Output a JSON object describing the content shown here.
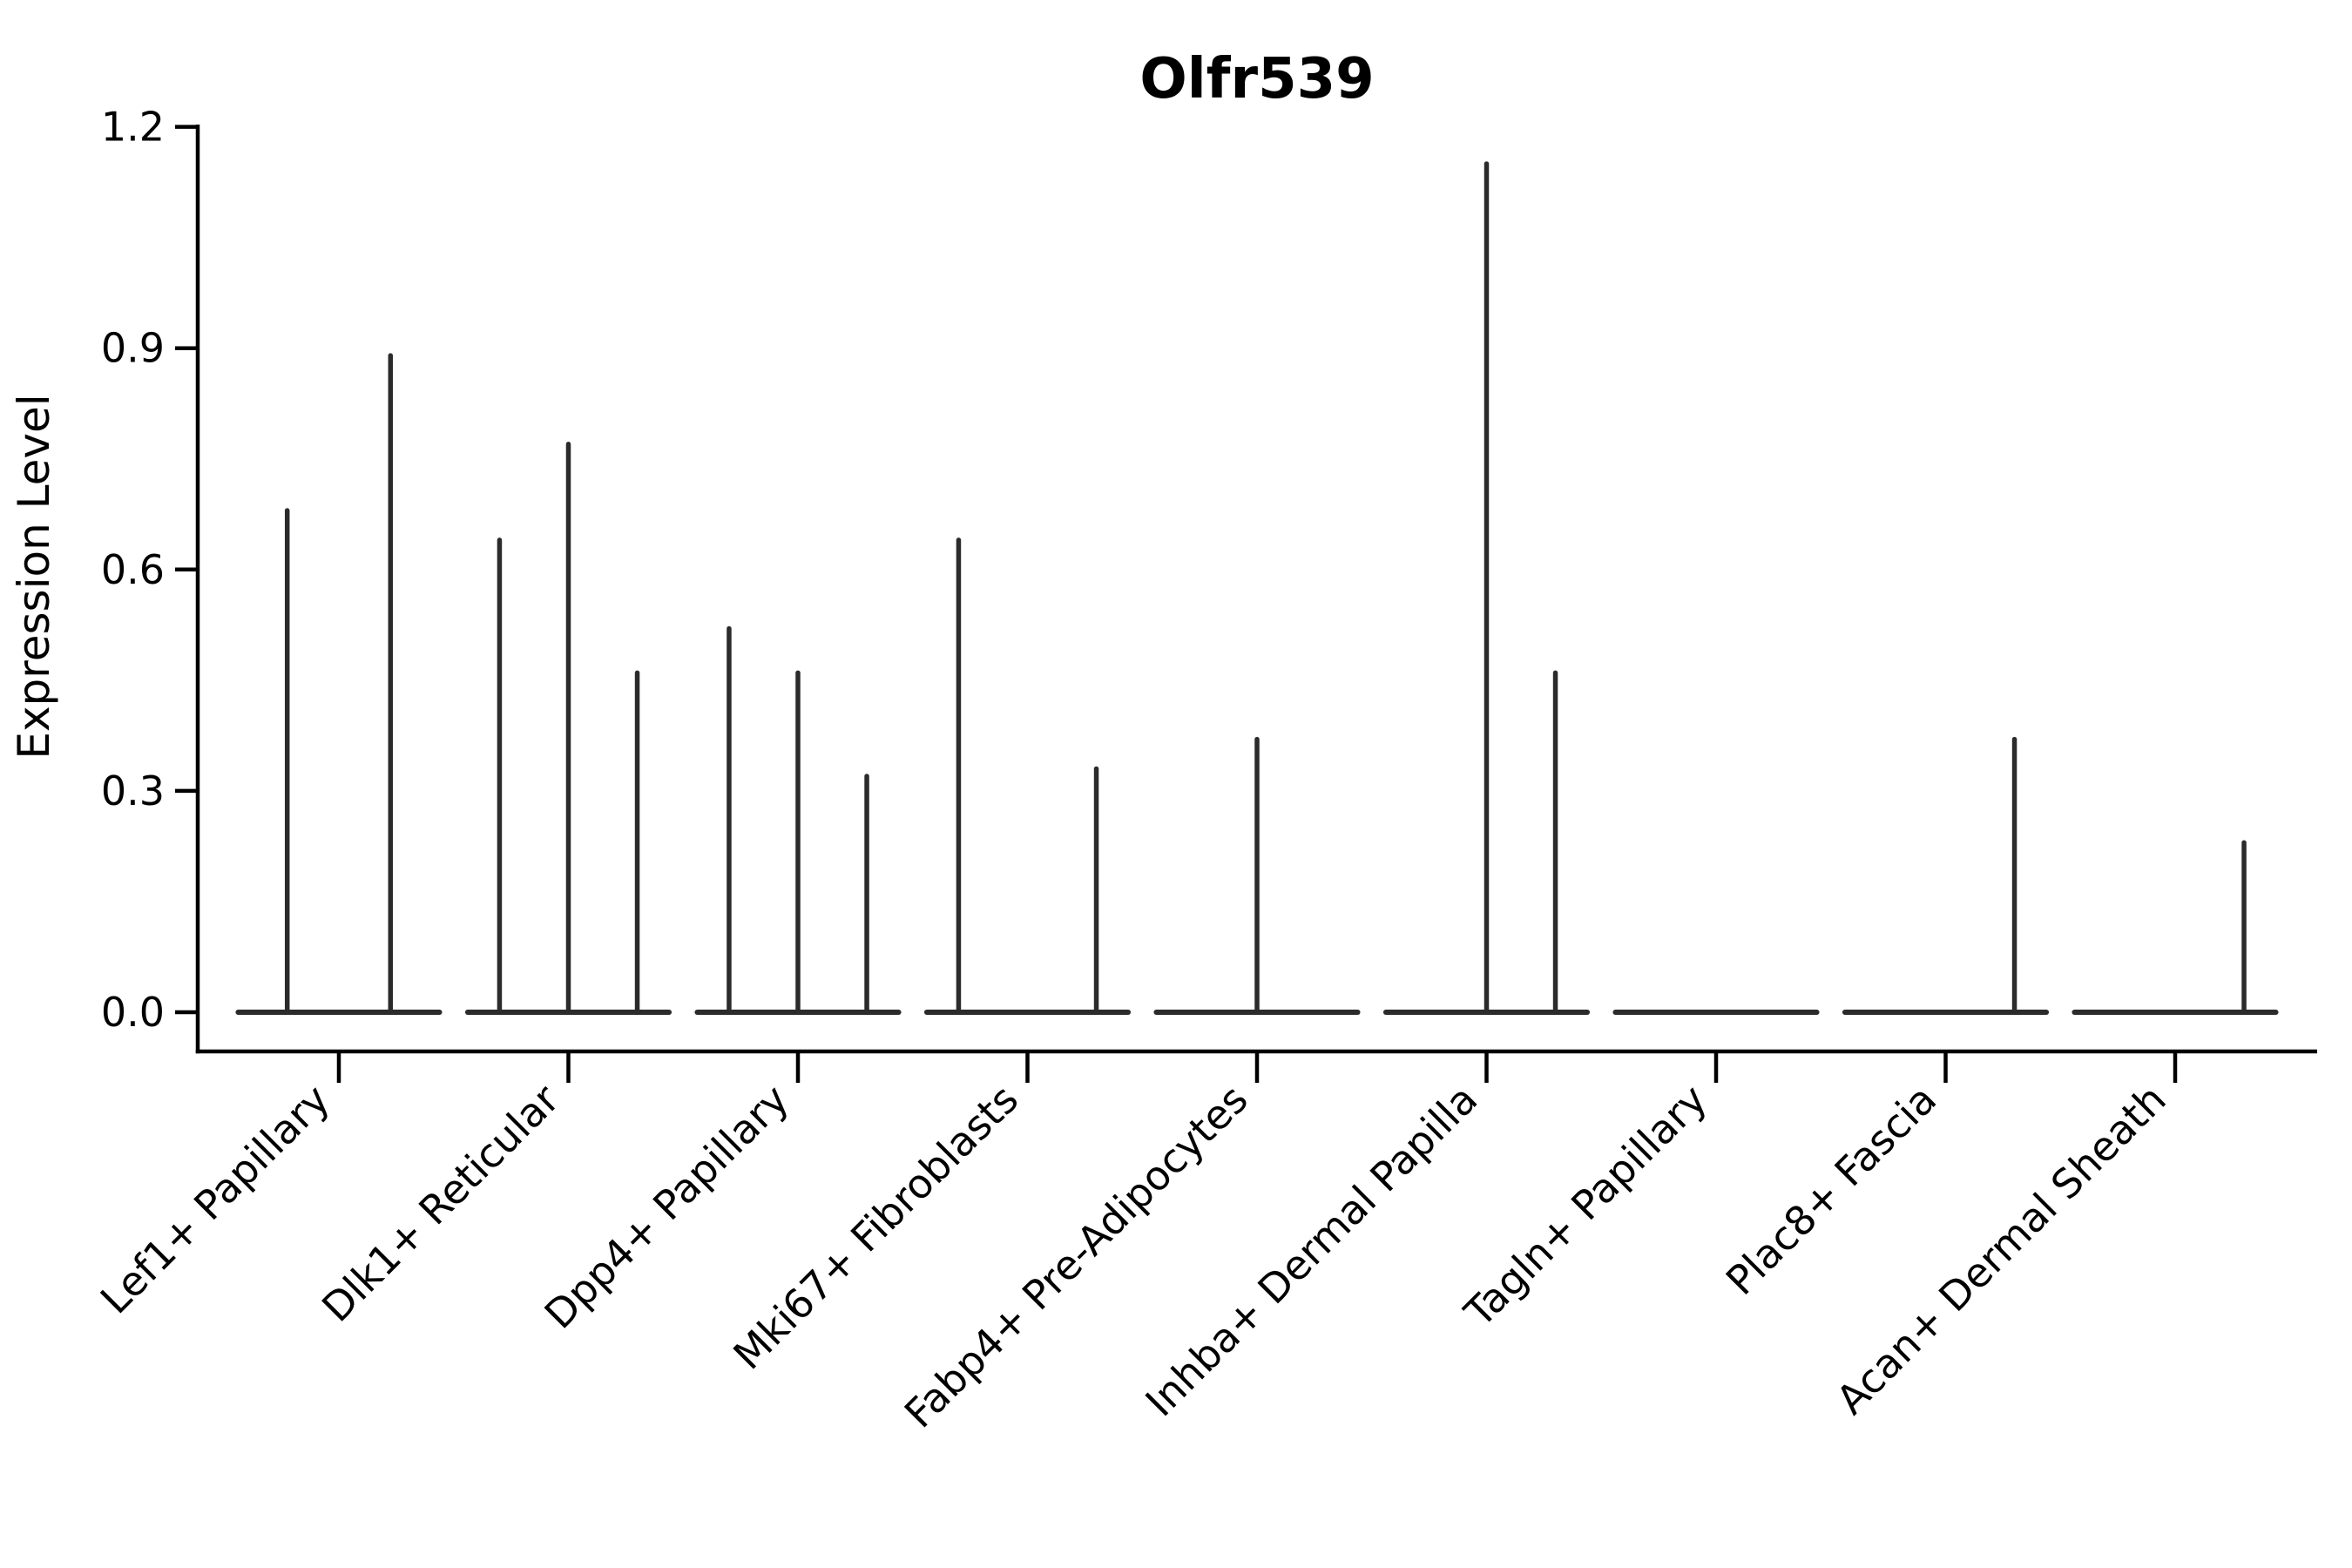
{
  "figure": {
    "background_color": "#ffffff"
  },
  "chart_data": {
    "type": "violin",
    "title": "Olfr539",
    "xlabel": "",
    "ylabel": "Expression Level",
    "ylim": [
      0,
      1.2
    ],
    "ytick_values": [
      0,
      0.3,
      0.6,
      0.9,
      1.2
    ],
    "ytick_labels": [
      "0.0",
      "0.3",
      "0.6",
      "0.9",
      "1.2"
    ],
    "grid": false,
    "legend_position": "none",
    "categories": [
      "Lef1+ Papillary",
      "Dlk1+ Reticular",
      "Dpp4+ Papillary",
      "Mki67+ Fibroblasts",
      "Fabp4+ Pre-Adipocytes",
      "Inhba+ Dermal Papilla",
      "Tagln+ Papillary",
      "Plac8+ Fascia",
      "Acan+ Dermal Sheath"
    ],
    "violins": [
      {
        "category": "Lef1+ Papillary",
        "baseline_value": 0,
        "half_width": 0.45,
        "spikes": [
          {
            "offset": -0.225,
            "peak": 0.68
          },
          {
            "offset": 0.225,
            "peak": 0.89
          }
        ]
      },
      {
        "category": "Dlk1+ Reticular",
        "baseline_value": 0,
        "half_width": 0.45,
        "spikes": [
          {
            "offset": -0.3,
            "peak": 0.64
          },
          {
            "offset": 0,
            "peak": 0.77
          },
          {
            "offset": 0.3,
            "peak": 0.46
          }
        ]
      },
      {
        "category": "Dpp4+ Papillary",
        "baseline_value": 0,
        "half_width": 0.45,
        "spikes": [
          {
            "offset": -0.3,
            "peak": 0.52
          },
          {
            "offset": 0,
            "peak": 0.46
          },
          {
            "offset": 0.3,
            "peak": 0.32
          }
        ]
      },
      {
        "category": "Mki67+ Fibroblasts",
        "baseline_value": 0,
        "half_width": 0.45,
        "spikes": [
          {
            "offset": -0.3,
            "peak": 0.64
          },
          {
            "offset": 0.3,
            "peak": 0.33
          }
        ]
      },
      {
        "category": "Fabp4+ Pre-Adipocytes",
        "baseline_value": 0,
        "half_width": 0.45,
        "spikes": [
          {
            "offset": 0,
            "peak": 0.37
          }
        ]
      },
      {
        "category": "Inhba+ Dermal Papilla",
        "baseline_value": 0,
        "half_width": 0.45,
        "spikes": [
          {
            "offset": 0,
            "peak": 1.15
          },
          {
            "offset": 0.3,
            "peak": 0.46
          }
        ]
      },
      {
        "category": "Tagln+ Papillary",
        "baseline_value": 0,
        "half_width": 0.45,
        "spikes": []
      },
      {
        "category": "Plac8+ Fascia",
        "baseline_value": 0,
        "half_width": 0.45,
        "spikes": [
          {
            "offset": 0.3,
            "peak": 0.37
          }
        ]
      },
      {
        "category": "Acan+ Dermal Sheath",
        "baseline_value": 0,
        "half_width": 0.45,
        "spikes": [
          {
            "offset": 0.3,
            "peak": 0.23
          }
        ]
      }
    ],
    "colors": {
      "violin_stroke": "#2b2b2b",
      "axis": "#000000",
      "text": "#000000",
      "background": "#ffffff"
    }
  }
}
